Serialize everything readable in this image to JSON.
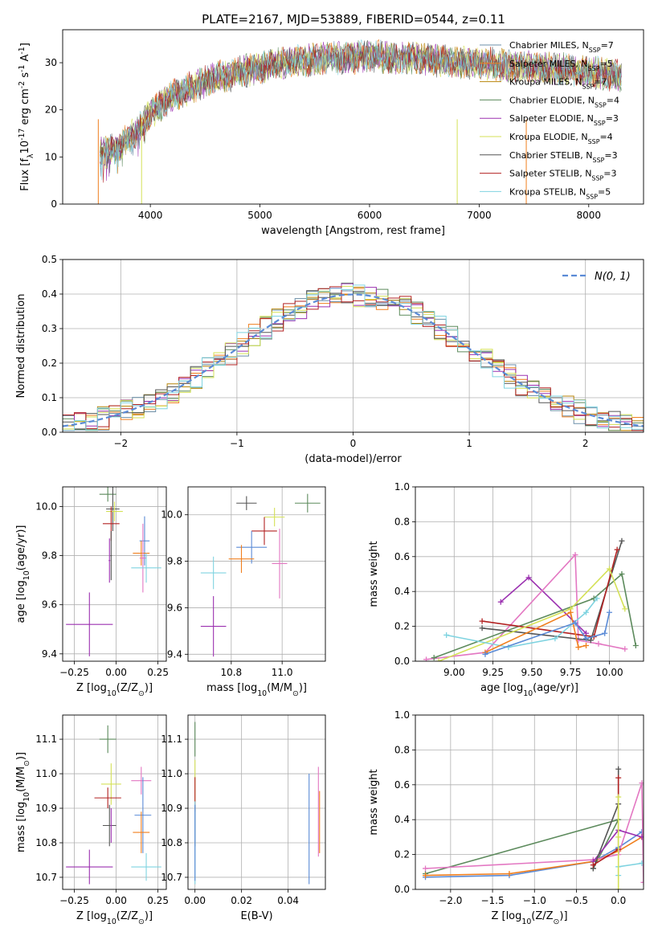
{
  "title": "PLATE=2167, MJD=53889, FIBERID=0544, z=0.11",
  "models": [
    {
      "name": "Chabrier MILES",
      "nssp": "7",
      "color": "#6b8fa8"
    },
    {
      "name": "Salpeter MILES",
      "nssp": "5",
      "color": "#f07f1e"
    },
    {
      "name": "Kroupa MILES",
      "nssp": "7",
      "color": "#b8860b"
    },
    {
      "name": "Chabrier ELODIE",
      "nssp": "4",
      "color": "#5c8a5c"
    },
    {
      "name": "Salpeter ELODIE",
      "nssp": "3",
      "color": "#9b30b0"
    },
    {
      "name": "Kroupa ELODIE",
      "nssp": "4",
      "color": "#d4e157"
    },
    {
      "name": "Chabrier STELIB",
      "nssp": "3",
      "color": "#555555"
    },
    {
      "name": "Salpeter STELIB",
      "nssp": "3",
      "color": "#b22222"
    },
    {
      "name": "Kroupa STELIB",
      "nssp": "5",
      "color": "#7fd3e0"
    }
  ],
  "colors": {
    "gauss": "#5b8bd6",
    "pink": "#e377c2",
    "blue": "#5b8bd6",
    "grid": "#b0b0b0"
  },
  "chart_data": [
    {
      "id": "spectrum",
      "type": "line",
      "xlabel": "wavelength [Angstrom, rest frame]",
      "ylabel": "Flux [f$_\\lambda$10$^{-17}$ erg cm$^{-2}$ s$^{-1}$ A$^{-1}$]",
      "xlim": [
        3200,
        8500
      ],
      "ylim": [
        0,
        37
      ],
      "xticks": [
        4000,
        5000,
        6000,
        7000,
        8000
      ],
      "yticks": [
        0,
        10,
        20,
        30
      ],
      "grid": false,
      "legend": "right",
      "spectrum_x": [
        3540,
        3600,
        3700,
        3800,
        3900,
        4000,
        4100,
        4200,
        4300,
        4400,
        4500,
        4600,
        4700,
        4800,
        4900,
        5000,
        5200,
        5400,
        5600,
        5800,
        6000,
        6200,
        6400,
        6600,
        6800,
        7000,
        7200,
        7400,
        7600,
        7800,
        8000,
        8200,
        8300
      ],
      "spectrum_y": [
        11,
        11,
        12,
        14,
        16,
        19,
        21,
        23,
        24,
        25,
        26,
        27,
        27,
        28,
        28.5,
        29,
        30,
        30.5,
        31,
        31,
        31.5,
        31,
        31,
        30.5,
        30,
        30,
        29.5,
        29,
        29,
        28.5,
        28,
        27.5,
        27
      ],
      "edges": [
        {
          "model": "Salpeter MILES",
          "x": 3525
        },
        {
          "model": "Kroupa ELODIE",
          "x": 3920
        },
        {
          "model": "Kroupa ELODIE",
          "x": 6800
        },
        {
          "model": "Salpeter MILES",
          "x": 7430
        }
      ]
    },
    {
      "id": "residuals",
      "type": "line",
      "xlabel": "(data-model)/error",
      "ylabel": "Normed distribution",
      "xlim": [
        -2.5,
        2.5
      ],
      "ylim": [
        0,
        0.5
      ],
      "xticks": [
        -2,
        -1,
        0,
        1,
        2
      ],
      "yticks": [
        0.0,
        0.1,
        0.2,
        0.3,
        0.4,
        0.5
      ],
      "grid": true,
      "legend": "top-right",
      "legend_label": "$\\mathcal{N}(0, 1)$",
      "gauss_sigma": 1
    },
    {
      "id": "age-Z",
      "type": "scatter",
      "xlabel": "Z [log$_{10}$(Z/Z$_\\odot$)]",
      "ylabel": "age  [log$_{10}$(age/yr)]",
      "xlim": [
        -0.32,
        0.3
      ],
      "ylim": [
        9.37,
        10.08
      ],
      "xticks": [
        -0.25,
        0.0,
        0.25
      ],
      "yticks": [
        9.4,
        9.6,
        9.8,
        10.0
      ],
      "grid": true,
      "points": [
        {
          "x": -0.05,
          "y": 10.05,
          "xe": 0.05,
          "ye": 0.03,
          "c": "#5c8a5c"
        },
        {
          "x": -0.02,
          "y": 9.99,
          "xe": 0.04,
          "ye": 0.09,
          "c": "#555555"
        },
        {
          "x": -0.01,
          "y": 9.98,
          "xe": 0.05,
          "ye": 0.04,
          "c": "#d4e157"
        },
        {
          "x": -0.03,
          "y": 9.93,
          "xe": 0.05,
          "ye": 0.07,
          "c": "#b22222"
        },
        {
          "x": 0.17,
          "y": 9.86,
          "xe": 0.03,
          "ye": 0.1,
          "c": "#5b8bd6"
        },
        {
          "x": 0.15,
          "y": 9.81,
          "xe": 0.05,
          "ye": 0.05,
          "c": "#f07f1e"
        },
        {
          "x": 0.16,
          "y": 9.79,
          "xe": 0.02,
          "ye": 0.14,
          "c": "#e377c2"
        },
        {
          "x": 0.18,
          "y": 9.75,
          "xe": 0.09,
          "ye": 0.06,
          "c": "#7fd3e0"
        },
        {
          "x": -0.03,
          "y": 9.8,
          "xe": 0.005,
          "ye": 0.1,
          "c": "#555555"
        },
        {
          "x": -0.04,
          "y": 9.78,
          "xe": 0.005,
          "ye": 0.09,
          "c": "#9b30b0"
        },
        {
          "x": -0.16,
          "y": 9.52,
          "xe": 0.14,
          "ye": 0.13,
          "c": "#9b30b0"
        }
      ]
    },
    {
      "id": "age-mass",
      "type": "scatter",
      "xlabel": "mass [log$_{10}$(M/M$_\\odot$)]",
      "ylabel": "",
      "xlim": [
        10.63,
        11.17
      ],
      "ylim": [
        9.37,
        10.12
      ],
      "xticks": [
        10.8,
        11.0
      ],
      "yticks": [
        9.4,
        9.6,
        9.8,
        10.0
      ],
      "grid": true,
      "points": [
        {
          "x": 11.1,
          "y": 10.05,
          "xe": 0.05,
          "ye": 0.04,
          "c": "#5c8a5c"
        },
        {
          "x": 10.86,
          "y": 10.05,
          "xe": 0.04,
          "ye": 0.03,
          "c": "#555555"
        },
        {
          "x": 10.97,
          "y": 9.99,
          "xe": 0.04,
          "ye": 0.04,
          "c": "#d4e157"
        },
        {
          "x": 10.93,
          "y": 9.93,
          "xe": 0.05,
          "ye": 0.06,
          "c": "#b22222"
        },
        {
          "x": 10.88,
          "y": 9.86,
          "xe": 0.06,
          "ye": 0.07,
          "c": "#5b8bd6"
        },
        {
          "x": 10.84,
          "y": 9.81,
          "xe": 0.05,
          "ye": 0.06,
          "c": "#f07f1e"
        },
        {
          "x": 10.99,
          "y": 9.79,
          "xe": 0.03,
          "ye": 0.15,
          "c": "#e377c2"
        },
        {
          "x": 10.73,
          "y": 9.75,
          "xe": 0.05,
          "ye": 0.07,
          "c": "#7fd3e0"
        },
        {
          "x": 10.73,
          "y": 9.52,
          "xe": 0.05,
          "ye": 0.13,
          "c": "#9b30b0"
        }
      ]
    },
    {
      "id": "weight-age",
      "type": "line",
      "xlabel": "age  [log$_{10}$(age/yr)]",
      "ylabel": "mass weight",
      "xlim": [
        8.75,
        10.22
      ],
      "ylim": [
        0,
        1
      ],
      "xticks": [
        9.0,
        9.25,
        9.5,
        9.75,
        10.0
      ],
      "yticks": [
        0.0,
        0.2,
        0.4,
        0.6,
        0.8,
        1.0
      ],
      "grid": true,
      "series": [
        {
          "c": "#9b30b0",
          "x": [
            9.3,
            9.48,
            9.85
          ],
          "y": [
            0.34,
            0.48,
            0.16
          ]
        },
        {
          "c": "#e377c2",
          "x": [
            8.82,
            9.2,
            9.78,
            9.8,
            9.93,
            10.1
          ],
          "y": [
            0.01,
            0.05,
            0.61,
            0.12,
            0.1,
            0.07
          ]
        },
        {
          "c": "#5c8a5c",
          "x": [
            8.87,
            9.9,
            10.08,
            10.17
          ],
          "y": [
            0.02,
            0.36,
            0.5,
            0.09
          ]
        },
        {
          "c": "#555555",
          "x": [
            9.18,
            9.88,
            10.08
          ],
          "y": [
            0.19,
            0.12,
            0.69
          ]
        },
        {
          "c": "#b22222",
          "x": [
            9.18,
            9.9,
            10.05
          ],
          "y": [
            0.23,
            0.14,
            0.64
          ]
        },
        {
          "c": "#d4e157",
          "x": [
            8.9,
            9.75,
            10.0,
            10.1
          ],
          "y": [
            0.0,
            0.3,
            0.53,
            0.3
          ]
        },
        {
          "c": "#7fd3e0",
          "x": [
            8.95,
            9.35,
            9.65,
            9.85,
            9.92
          ],
          "y": [
            0.15,
            0.08,
            0.13,
            0.28,
            0.36
          ]
        },
        {
          "c": "#f07f1e",
          "x": [
            9.2,
            9.75,
            9.8,
            9.85
          ],
          "y": [
            0.05,
            0.28,
            0.08,
            0.09
          ]
        },
        {
          "c": "#5b8bd6",
          "x": [
            9.2,
            9.78,
            9.85,
            9.97,
            10.0
          ],
          "y": [
            0.04,
            0.22,
            0.13,
            0.16,
            0.28
          ]
        }
      ]
    },
    {
      "id": "mass-Z",
      "type": "scatter",
      "xlabel": "Z [log$_{10}$(Z/Z$_\\odot$)]",
      "ylabel": "mass [log$_{10}$(M/M$_\\odot$)]",
      "xlim": [
        -0.32,
        0.3
      ],
      "ylim": [
        10.665,
        11.17
      ],
      "xticks": [
        -0.25,
        0.0,
        0.25
      ],
      "yticks": [
        10.7,
        10.8,
        10.9,
        11.0,
        11.1
      ],
      "grid": true,
      "points": [
        {
          "x": -0.05,
          "y": 11.1,
          "xe": 0.05,
          "ye": 0.04,
          "c": "#5c8a5c"
        },
        {
          "x": 0.15,
          "y": 10.98,
          "xe": 0.06,
          "ye": 0.04,
          "c": "#e377c2"
        },
        {
          "x": -0.03,
          "y": 10.97,
          "xe": 0.06,
          "ye": 0.06,
          "c": "#d4e157"
        },
        {
          "x": -0.05,
          "y": 10.93,
          "xe": 0.08,
          "ye": 0.03,
          "c": "#b22222"
        },
        {
          "x": 0.16,
          "y": 10.88,
          "xe": 0.05,
          "ye": 0.11,
          "c": "#5b8bd6"
        },
        {
          "x": 0.15,
          "y": 10.83,
          "xe": 0.05,
          "ye": 0.06,
          "c": "#f07f1e"
        },
        {
          "x": -0.04,
          "y": 10.85,
          "xe": 0.04,
          "ye": 0.06,
          "c": "#555555"
        },
        {
          "x": -0.03,
          "y": 10.85,
          "xe": 0.005,
          "ye": 0.05,
          "c": "#9b30b0"
        },
        {
          "x": -0.16,
          "y": 10.73,
          "xe": 0.14,
          "ye": 0.05,
          "c": "#9b30b0"
        },
        {
          "x": 0.18,
          "y": 10.73,
          "xe": 0.09,
          "ye": 0.04,
          "c": "#7fd3e0"
        }
      ]
    },
    {
      "id": "mass-EBV",
      "type": "scatter",
      "xlabel": "E(B-V)",
      "ylabel": "",
      "xlim": [
        -0.003,
        0.056
      ],
      "ylim": [
        10.665,
        11.17
      ],
      "xticks": [
        0.0,
        0.02,
        0.04
      ],
      "xtick_labels": [
        "0.00",
        "0.02",
        "0.04"
      ],
      "yticks": [
        10.7,
        10.8,
        10.9,
        11.0,
        11.1
      ],
      "grid": true,
      "points": [
        {
          "x": 0.0,
          "y": 11.1,
          "xe": 0,
          "ye": 0.05,
          "c": "#5c8a5c"
        },
        {
          "x": 0.0,
          "y": 10.98,
          "xe": 0,
          "ye": 0.06,
          "c": "#d4e157"
        },
        {
          "x": 0.0,
          "y": 10.94,
          "xe": 0,
          "ye": 0.05,
          "c": "#b22222"
        },
        {
          "x": 0.0,
          "y": 10.85,
          "xe": 0,
          "ye": 0.06,
          "c": "#555555"
        },
        {
          "x": 0.0,
          "y": 10.8,
          "xe": 0,
          "ye": 0.12,
          "c": "#7fd3e0"
        },
        {
          "x": 0.0,
          "y": 10.8,
          "xe": 0,
          "ye": 0.11,
          "c": "#5b8bd6"
        },
        {
          "x": 0.049,
          "y": 10.84,
          "xe": 0,
          "ye": 0.16,
          "c": "#5b8bd6"
        },
        {
          "x": 0.053,
          "y": 10.89,
          "xe": 0,
          "ye": 0.13,
          "c": "#e377c2"
        },
        {
          "x": 0.0535,
          "y": 10.86,
          "xe": 0,
          "ye": 0.09,
          "c": "#f07f1e"
        }
      ]
    },
    {
      "id": "weight-Z",
      "type": "line",
      "xlabel": "Z [log$_{10}$(Z/Z$_\\odot$)]",
      "ylabel": "mass weight",
      "xlim": [
        -2.42,
        0.3
      ],
      "ylim": [
        0,
        1
      ],
      "xticks": [
        -2.0,
        -1.5,
        -1.0,
        -0.5,
        0.0
      ],
      "yticks": [
        0.0,
        0.2,
        0.4,
        0.6,
        0.8,
        1.0
      ],
      "grid": true,
      "series": [
        {
          "c": "#5c8a5c",
          "x": [
            -2.3,
            0.0,
            -0.3
          ],
          "y": [
            0.09,
            0.4,
            0.12
          ]
        },
        {
          "c": "#5b8bd6",
          "x": [
            -2.3,
            -1.3,
            -0.3,
            0.0,
            0.28
          ],
          "y": [
            0.07,
            0.08,
            0.16,
            0.24,
            0.33
          ]
        },
        {
          "c": "#f07f1e",
          "x": [
            -2.3,
            -1.3,
            -0.3,
            0.0,
            0.28
          ],
          "y": [
            0.08,
            0.09,
            0.16,
            0.22,
            0.3
          ]
        },
        {
          "c": "#e377c2",
          "x": [
            -2.3,
            -0.3,
            0.0,
            0.28,
            0.3
          ],
          "y": [
            0.12,
            0.17,
            0.2,
            0.61,
            0.04
          ]
        },
        {
          "c": "#9b30b0",
          "x": [
            -0.3,
            0.0,
            0.28
          ],
          "y": [
            0.16,
            0.34,
            0.3
          ]
        },
        {
          "c": "#555555",
          "x": [
            -0.3,
            0.0,
            0.0
          ],
          "y": [
            0.12,
            0.49,
            0.69
          ]
        },
        {
          "c": "#b22222",
          "x": [
            -0.3,
            0.0,
            0.0
          ],
          "y": [
            0.14,
            0.23,
            0.64
          ]
        },
        {
          "c": "#7fd3e0",
          "x": [
            0.0,
            0.0,
            0.28
          ],
          "y": [
            0.08,
            0.13,
            0.15
          ]
        },
        {
          "c": "#d4e157",
          "x": [
            0.0,
            0.0,
            0.0
          ],
          "y": [
            0.0,
            0.3,
            0.53
          ]
        }
      ]
    }
  ]
}
